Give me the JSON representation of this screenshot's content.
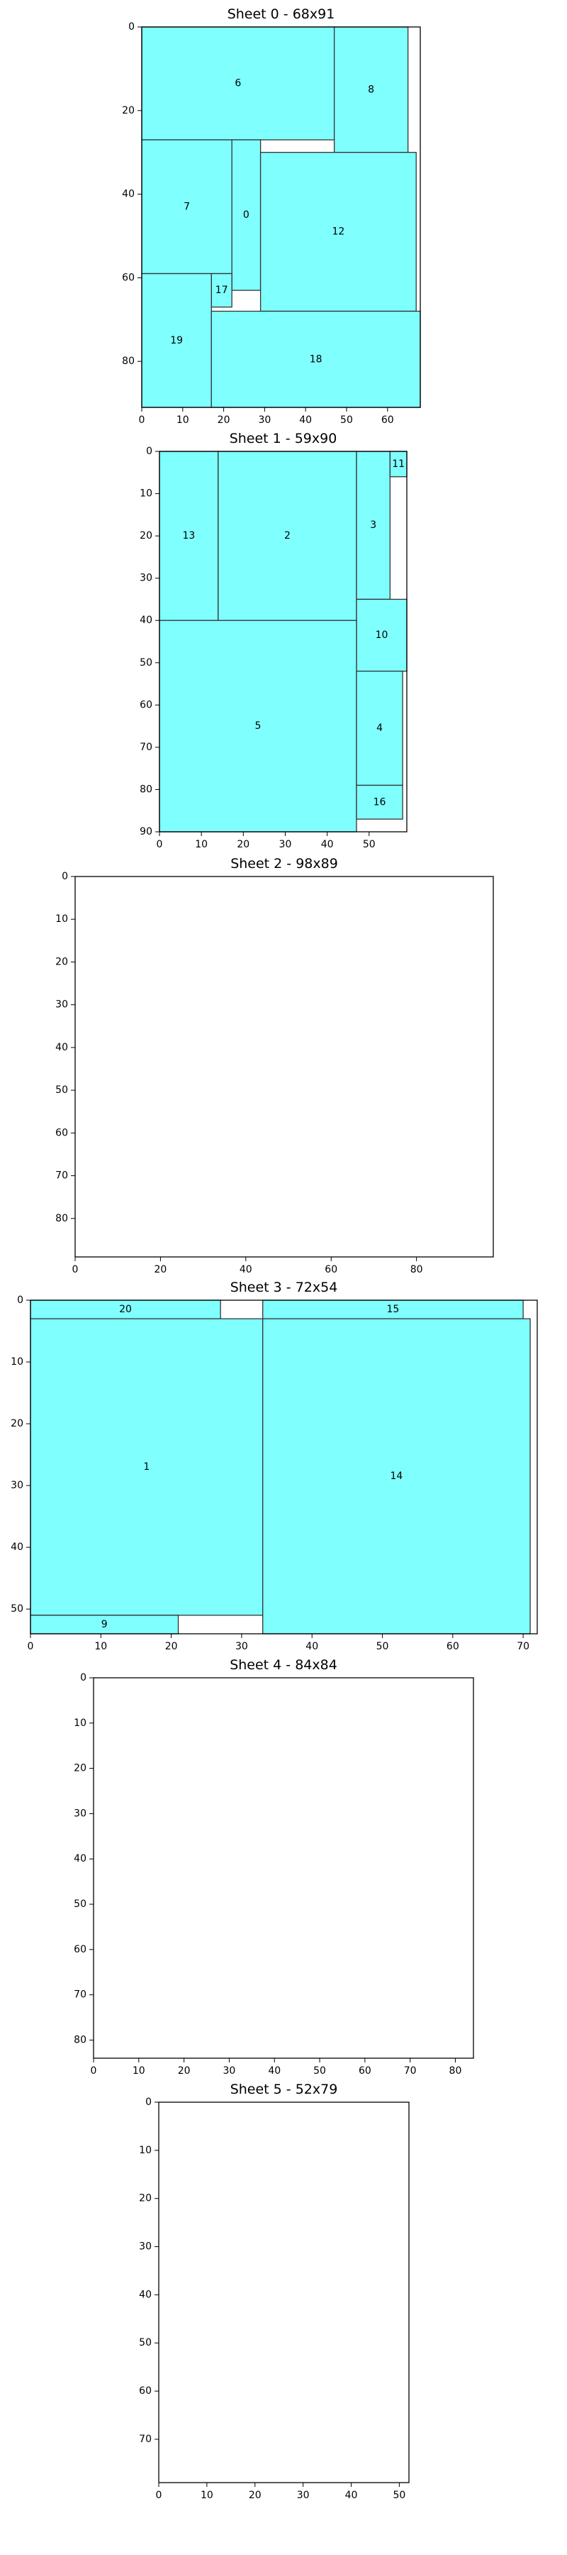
{
  "colors": {
    "fill": "#80ffff",
    "edge": "#333333",
    "axis": "#000000"
  },
  "chart_data": [
    {
      "type": "rectangle-packing",
      "title": "Sheet 0 - 68x91",
      "xlim": [
        0,
        68
      ],
      "ylim": [
        0,
        91
      ],
      "y_inverted": true,
      "xticks": [
        0,
        10,
        20,
        30,
        40,
        50,
        60
      ],
      "yticks": [
        0,
        20,
        40,
        60,
        80
      ],
      "pieces": [
        {
          "label": "6",
          "x": 0,
          "y": 0,
          "w": 47,
          "h": 27
        },
        {
          "label": "8",
          "x": 47,
          "y": 0,
          "w": 18,
          "h": 30
        },
        {
          "label": "7",
          "x": 0,
          "y": 27,
          "w": 22,
          "h": 32
        },
        {
          "label": "0",
          "x": 22,
          "y": 27,
          "w": 7,
          "h": 36
        },
        {
          "label": "12",
          "x": 29,
          "y": 30,
          "w": 38,
          "h": 38
        },
        {
          "label": "17",
          "x": 17,
          "y": 59,
          "w": 5,
          "h": 8
        },
        {
          "label": "19",
          "x": 0,
          "y": 59,
          "w": 17,
          "h": 32
        },
        {
          "label": "18",
          "x": 17,
          "y": 68,
          "w": 51,
          "h": 23
        }
      ]
    },
    {
      "type": "rectangle-packing",
      "title": "Sheet 1 - 59x90",
      "xlim": [
        0,
        59
      ],
      "ylim": [
        0,
        90
      ],
      "y_inverted": true,
      "xticks": [
        0,
        10,
        20,
        30,
        40,
        50
      ],
      "yticks": [
        0,
        10,
        20,
        30,
        40,
        50,
        60,
        70,
        80,
        90
      ],
      "pieces": [
        {
          "label": "13",
          "x": 0,
          "y": 0,
          "w": 14,
          "h": 40
        },
        {
          "label": "2",
          "x": 14,
          "y": 0,
          "w": 33,
          "h": 40
        },
        {
          "label": "3",
          "x": 47,
          "y": 0,
          "w": 8,
          "h": 35
        },
        {
          "label": "11",
          "x": 55,
          "y": 0,
          "w": 4,
          "h": 6
        },
        {
          "label": "10",
          "x": 47,
          "y": 35,
          "w": 12,
          "h": 17
        },
        {
          "label": "5",
          "x": 0,
          "y": 40,
          "w": 47,
          "h": 50
        },
        {
          "label": "4",
          "x": 47,
          "y": 52,
          "w": 11,
          "h": 27
        },
        {
          "label": "16",
          "x": 47,
          "y": 79,
          "w": 11,
          "h": 8
        }
      ]
    },
    {
      "type": "rectangle-packing",
      "title": "Sheet 2 - 98x89",
      "xlim": [
        0,
        98
      ],
      "ylim": [
        0,
        89
      ],
      "y_inverted": true,
      "xticks": [
        0,
        20,
        40,
        60,
        80
      ],
      "yticks": [
        0,
        10,
        20,
        30,
        40,
        50,
        60,
        70,
        80
      ],
      "pieces": []
    },
    {
      "type": "rectangle-packing",
      "title": "Sheet 3 - 72x54",
      "xlim": [
        0,
        72
      ],
      "ylim": [
        0,
        54
      ],
      "y_inverted": true,
      "xticks": [
        0,
        10,
        20,
        30,
        40,
        50,
        60,
        70
      ],
      "yticks": [
        0,
        10,
        20,
        30,
        40,
        50
      ],
      "pieces": [
        {
          "label": "20",
          "x": 0,
          "y": 0,
          "w": 27,
          "h": 3
        },
        {
          "label": "15",
          "x": 33,
          "y": 0,
          "w": 37,
          "h": 3
        },
        {
          "label": "1",
          "x": 0,
          "y": 3,
          "w": 33,
          "h": 48
        },
        {
          "label": "14",
          "x": 33,
          "y": 3,
          "w": 38,
          "h": 51
        },
        {
          "label": "9",
          "x": 0,
          "y": 51,
          "w": 21,
          "h": 3
        }
      ]
    },
    {
      "type": "rectangle-packing",
      "title": "Sheet 4 - 84x84",
      "xlim": [
        0,
        84
      ],
      "ylim": [
        0,
        84
      ],
      "y_inverted": true,
      "xticks": [
        0,
        10,
        20,
        30,
        40,
        50,
        60,
        70,
        80
      ],
      "yticks": [
        0,
        10,
        20,
        30,
        40,
        50,
        60,
        70,
        80
      ],
      "pieces": []
    },
    {
      "type": "rectangle-packing",
      "title": "Sheet 5 - 52x79",
      "xlim": [
        0,
        52
      ],
      "ylim": [
        0,
        79
      ],
      "y_inverted": true,
      "xticks": [
        0,
        10,
        20,
        30,
        40,
        50
      ],
      "yticks": [
        0,
        10,
        20,
        30,
        40,
        50,
        60,
        70
      ],
      "pieces": []
    }
  ]
}
